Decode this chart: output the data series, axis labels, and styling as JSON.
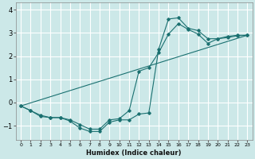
{
  "title": "",
  "xlabel": "Humidex (Indice chaleur)",
  "background_color": "#cce8e8",
  "grid_color": "#ffffff",
  "line_color": "#1a7070",
  "xlim": [
    -0.5,
    23.5
  ],
  "ylim": [
    -1.6,
    4.3
  ],
  "xticks": [
    0,
    1,
    2,
    3,
    4,
    5,
    6,
    7,
    8,
    9,
    10,
    11,
    12,
    13,
    14,
    15,
    16,
    17,
    18,
    19,
    20,
    21,
    22,
    23
  ],
  "yticks": [
    -1,
    0,
    1,
    2,
    3,
    4
  ],
  "line1_x": [
    0,
    1,
    2,
    3,
    4,
    5,
    6,
    7,
    8,
    9,
    10,
    11,
    12,
    13,
    14,
    15,
    16,
    17,
    18,
    19,
    20,
    21,
    22,
    23
  ],
  "line1_y": [
    -0.15,
    -0.35,
    -0.6,
    -0.65,
    -0.65,
    -0.8,
    -1.1,
    -1.25,
    -1.25,
    -0.85,
    -0.75,
    -0.75,
    -0.5,
    -0.45,
    2.3,
    3.6,
    3.65,
    3.2,
    3.1,
    2.75,
    2.75,
    2.85,
    2.9,
    2.9
  ],
  "line2_x": [
    0,
    1,
    2,
    3,
    4,
    5,
    6,
    7,
    8,
    9,
    10,
    11,
    12,
    13,
    14,
    15,
    16,
    17,
    18,
    19,
    20,
    21,
    22,
    23
  ],
  "line2_y": [
    -0.15,
    -0.35,
    -0.55,
    -0.65,
    -0.65,
    -0.75,
    -0.95,
    -1.15,
    -1.15,
    -0.75,
    -0.7,
    -0.35,
    1.35,
    1.5,
    2.15,
    2.95,
    3.4,
    3.15,
    2.95,
    2.55,
    2.75,
    2.8,
    2.88,
    2.9
  ],
  "line3_x": [
    0,
    23
  ],
  "line3_y": [
    -0.15,
    2.9
  ]
}
